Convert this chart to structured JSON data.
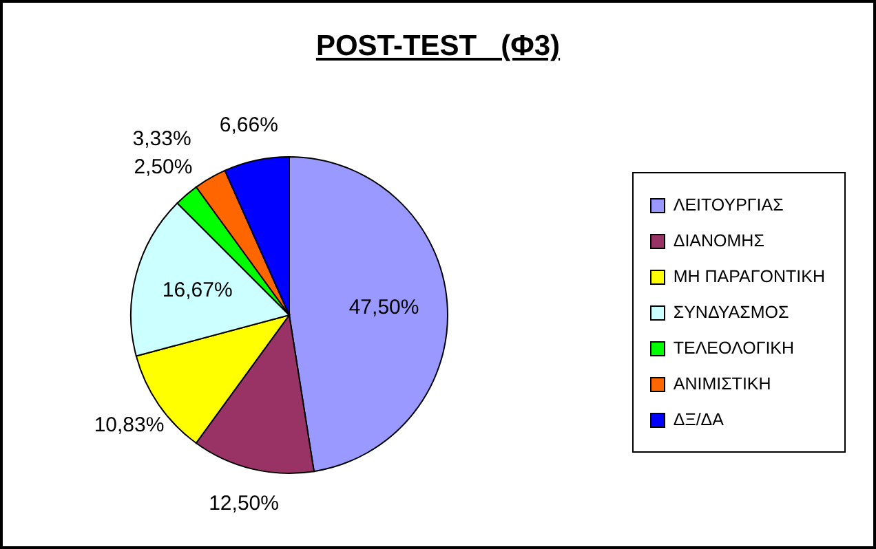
{
  "chart_data": {
    "type": "pie",
    "title": "POST-TEST   (Φ3)",
    "categories": [
      "ΛΕΙΤΟΥΡΓΙΑΣ",
      "ΔΙΑΝΟΜΗΣ",
      "ΜΗ ΠΑΡΑΓΟΝΤΙΚΗ",
      "ΣΥΝΔΥΑΣΜΟΣ",
      "ΤΕΛΕΟΛΟΓΙΚΗ",
      "ΑΝΙΜΙΣΤΙΚΗ",
      "ΔΞ/ΔΑ"
    ],
    "values": [
      47.5,
      12.5,
      10.83,
      16.67,
      2.5,
      3.33,
      6.66
    ],
    "colors": [
      "#9999ff",
      "#993366",
      "#ffff00",
      "#ccffff",
      "#00ff00",
      "#ff6600",
      "#0000ff"
    ],
    "value_labels": [
      "47,50%",
      "12,50%",
      "10,83%",
      "16,67%",
      "2,50%",
      "3,33%",
      "6,66%"
    ],
    "legend": "right"
  }
}
